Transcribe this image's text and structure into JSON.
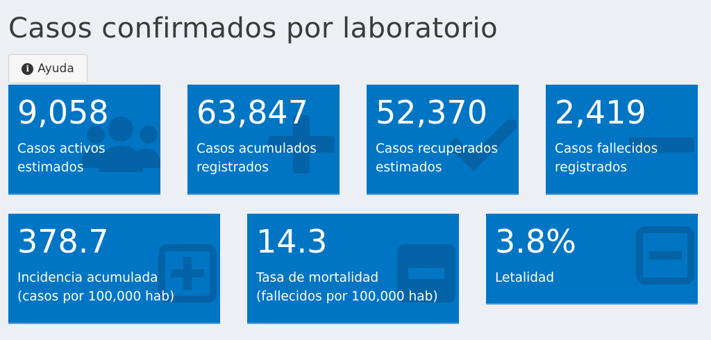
{
  "header": {
    "title": "Casos confirmados por laboratorio",
    "help_label": "Ayuda"
  },
  "colors": {
    "card_bg": "#0075c4",
    "page_bg": "#eceff4"
  },
  "cards": [
    {
      "value": "9,058",
      "label_line1": "Casos activos",
      "label_line2": "estimados",
      "icon": "users-icon"
    },
    {
      "value": "63,847",
      "label_line1": "Casos acumulados",
      "label_line2": "registrados",
      "icon": "plus-icon"
    },
    {
      "value": "52,370",
      "label_line1": "Casos recuperados",
      "label_line2": "estimados",
      "icon": "check-icon"
    },
    {
      "value": "2,419",
      "label_line1": "Casos fallecidos",
      "label_line2": "registrados",
      "icon": "minus-icon"
    },
    {
      "value": "378.7",
      "label_line1": "Incidencia acumulada",
      "label_line2": "(casos por 100,000 hab)",
      "icon": "plus-square-icon"
    },
    {
      "value": "14.3",
      "label_line1": "Tasa de mortalidad",
      "label_line2": "(fallecidos por 100,000 hab)",
      "icon": "minus-square-icon"
    },
    {
      "value": "3.8%",
      "label_line1": "Letalidad",
      "label_line2": "",
      "icon": "minus-square-outline-icon"
    }
  ]
}
